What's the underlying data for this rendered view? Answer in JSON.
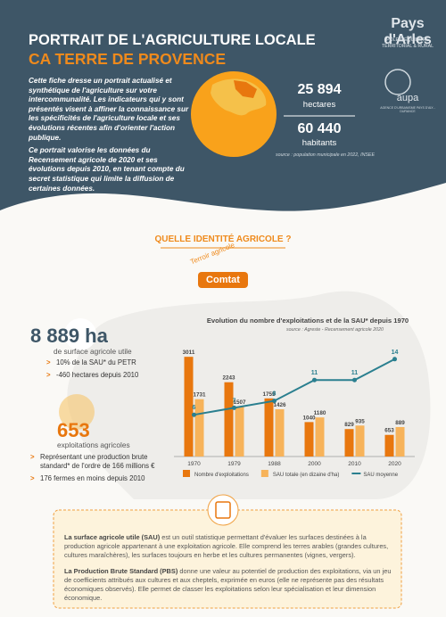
{
  "header": {
    "title": "PORTRAIT DE L'AGRICULTURE LOCALE",
    "subtitle": "CA TERRE DE PROVENCE",
    "logo_1_name": "Pays d'Arles",
    "logo_1_tagline": "PÔLE D'ÉQUILIBRE TERRITORIAL & RURAL",
    "logo_2_name": "aupa",
    "logo_2_tagline": "AGENCE D'URBANISME PAYS D'AIX - DURANCE"
  },
  "intro": [
    "Cette fiche dresse un portrait actualisé et synthétique de l'agriculture sur votre intercommunalité. Les indicateurs qui y sont présentés visent à affiner la connaissance sur les spécificités de l'agriculture locale et ses évolutions récentes afin d'orienter l'action publique.",
    "Ce portrait valorise les données du Recensement agricole de 2020 et ses évolutions depuis 2010, en tenant compte du secret statistique qui limite la diffusion de certaines données."
  ],
  "territory": {
    "area_value": "25 894",
    "area_unit": "hectares",
    "population_value": "60 440",
    "population_unit": "habitants",
    "source": "source : population municipale en 2022, INSEE"
  },
  "section_title": "QUELLE IDENTITÉ AGRICOLE ?",
  "terroir": {
    "label": "Terroir agricole",
    "value": "Comtat"
  },
  "sau": {
    "value": "8 889 ha",
    "label": "de surface agricole utile",
    "bullets": [
      "10% de la SAU* du PETR",
      "-460 hectares depuis 2010"
    ]
  },
  "farms": {
    "value": "653",
    "label": "exploitations agricoles",
    "bullets": [
      "Représentant une production brute standard* de l'ordre de 166 millions €",
      "176 fermes en moins depuis 2010"
    ]
  },
  "chart_data": {
    "type": "bar",
    "title": "Evolution du nombre d'exploitations et de la SAU* depuis 1970",
    "source": "source : Agreste - Recensement agricole 2020",
    "categories": [
      "1970",
      "1979",
      "1988",
      "2000",
      "2010",
      "2020"
    ],
    "ylim": [
      0,
      3150
    ],
    "y2lim": [
      0,
      15
    ],
    "series": [
      {
        "name": "Nombre d'exploitations",
        "type": "bar",
        "color": "#e8770e",
        "values": [
          3011,
          2243,
          1755,
          1040,
          829,
          653
        ]
      },
      {
        "name": "SAU totale (en dizaine d'ha)",
        "type": "bar",
        "color": "#f7b35a",
        "values": [
          1731,
          1507,
          1426,
          1180,
          935,
          889
        ]
      },
      {
        "name": "SAU moyenne",
        "type": "line",
        "axis": "y2",
        "color": "#2a7f8f",
        "values": [
          6,
          7,
          8,
          11,
          11,
          14
        ]
      }
    ]
  },
  "glossary": [
    {
      "term": "La surface agricole utile (SAU)",
      "text": " est un outil statistique permettant d'évaluer les surfaces destinées à la production agricole appartenant à une exploitation agricole. Elle comprend les terres arables (grandes cultures, cultures maraîchères), les surfaces toujours en herbe et les cultures permanentes (vignes, vergers)."
    },
    {
      "term": "La Production Brute Standard (PBS)",
      "text": " donne une valeur au potentiel de production des exploitations, via un jeu de coefficients attribués aux cultures et aux cheptels, exprimée en euros (elle ne représente pas des résultats économiques observés). Elle permet de classer les exploitations selon leur spécialisation et leur dimension économique."
    }
  ]
}
